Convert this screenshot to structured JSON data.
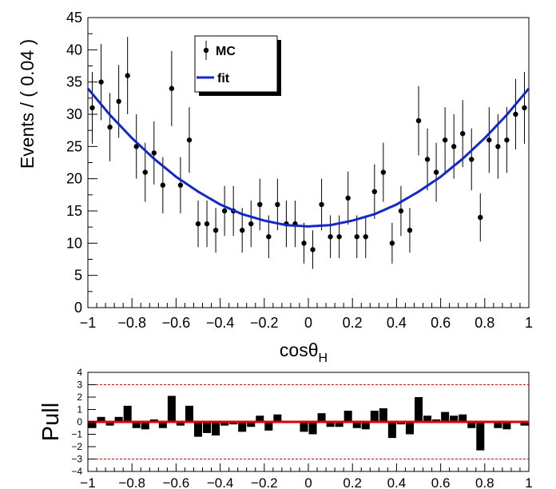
{
  "chart_data": [
    {
      "type": "scatter",
      "xlabel_main": "cosθ",
      "xlabel_sub": "H",
      "ylabel": "Events / ( 0.04 )",
      "xlim": [
        -1,
        1
      ],
      "ylim": [
        0,
        45
      ],
      "x_ticks": [
        "−1",
        "−0.8",
        "−0.6",
        "−0.4",
        "−0.2",
        "0",
        "0.2",
        "0.4",
        "0.6",
        "0.8",
        "1"
      ],
      "y_ticks": [
        "0",
        "5",
        "10",
        "15",
        "20",
        "25",
        "30",
        "35",
        "40",
        "45"
      ],
      "legend": {
        "position": "top-left",
        "entries": [
          "MC",
          "fit"
        ]
      },
      "series": [
        {
          "name": "MC",
          "style": "points-with-errorbars",
          "color": "#000000",
          "x": [
            -0.98,
            -0.94,
            -0.9,
            -0.86,
            -0.82,
            -0.78,
            -0.74,
            -0.7,
            -0.66,
            -0.62,
            -0.58,
            -0.54,
            -0.5,
            -0.46,
            -0.42,
            -0.38,
            -0.34,
            -0.3,
            -0.26,
            -0.22,
            -0.18,
            -0.14,
            -0.1,
            -0.06,
            -0.02,
            0.02,
            0.06,
            0.1,
            0.14,
            0.18,
            0.22,
            0.26,
            0.3,
            0.34,
            0.38,
            0.42,
            0.46,
            0.5,
            0.54,
            0.58,
            0.62,
            0.66,
            0.7,
            0.74,
            0.78,
            0.82,
            0.86,
            0.9,
            0.94,
            0.98
          ],
          "y": [
            31,
            35,
            28,
            32,
            36,
            25,
            21,
            24,
            19,
            34,
            19,
            26,
            13,
            13,
            12,
            15,
            15,
            12,
            13,
            16,
            11,
            16,
            13,
            13,
            10,
            9,
            16,
            11,
            11,
            17,
            11,
            11,
            18,
            21,
            10,
            15,
            12,
            29,
            23,
            21,
            26,
            25,
            27,
            23,
            14,
            26,
            25,
            26,
            30,
            31
          ]
        },
        {
          "name": "fit",
          "style": "line",
          "color": "#1428c8",
          "function": "12.6 + 21.4 * x^2",
          "x": [
            -1,
            -0.9,
            -0.8,
            -0.7,
            -0.6,
            -0.5,
            -0.4,
            -0.3,
            -0.2,
            -0.1,
            0,
            0.1,
            0.2,
            0.3,
            0.4,
            0.5,
            0.6,
            0.7,
            0.8,
            0.9,
            1
          ],
          "y": [
            34.0,
            29.9,
            26.3,
            23.1,
            20.3,
            18.0,
            16.0,
            14.5,
            13.5,
            12.8,
            12.6,
            12.8,
            13.5,
            14.5,
            16.0,
            18.0,
            20.3,
            23.1,
            26.3,
            29.9,
            34.0
          ]
        }
      ]
    },
    {
      "type": "bar",
      "ylabel": "Pull",
      "xlim": [
        -1,
        1
      ],
      "ylim": [
        -4,
        4
      ],
      "x_ticks": [
        "−1",
        "−0.8",
        "−0.6",
        "−0.4",
        "−0.2",
        "0",
        "0.2",
        "0.4",
        "0.6",
        "0.8",
        "1"
      ],
      "y_ticks": [
        "−4",
        "−3",
        "−2",
        "−1",
        "0",
        "1",
        "2",
        "3",
        "4"
      ],
      "reference_lines": [
        {
          "y": 0,
          "color": "#e00000",
          "style": "solid"
        },
        {
          "y": 3,
          "color": "#e00000",
          "style": "dashed"
        },
        {
          "y": -3,
          "color": "#e00000",
          "style": "dashed"
        }
      ],
      "bar_color": "#000000",
      "x": [
        -0.98,
        -0.94,
        -0.9,
        -0.86,
        -0.82,
        -0.78,
        -0.74,
        -0.7,
        -0.66,
        -0.62,
        -0.58,
        -0.54,
        -0.5,
        -0.46,
        -0.42,
        -0.38,
        -0.34,
        -0.3,
        -0.26,
        -0.22,
        -0.18,
        -0.14,
        -0.1,
        -0.06,
        -0.02,
        0.02,
        0.06,
        0.1,
        0.14,
        0.18,
        0.22,
        0.26,
        0.3,
        0.34,
        0.38,
        0.42,
        0.46,
        0.5,
        0.54,
        0.58,
        0.62,
        0.66,
        0.7,
        0.74,
        0.78,
        0.82,
        0.86,
        0.9,
        0.94,
        0.98
      ],
      "values": [
        -0.5,
        0.4,
        -0.3,
        0.4,
        1.3,
        -0.5,
        -0.6,
        0.2,
        -0.5,
        2.1,
        -0.3,
        1.3,
        -1.2,
        -0.9,
        -1.1,
        -0.3,
        -0.2,
        -0.8,
        -0.4,
        0.5,
        -0.7,
        0.6,
        -0.1,
        -0.1,
        -0.8,
        -1.0,
        0.7,
        -0.4,
        -0.4,
        0.9,
        -0.5,
        -0.6,
        0.9,
        1.1,
        -1.3,
        -0.2,
        -1.0,
        2.0,
        0.5,
        0.2,
        0.8,
        0.5,
        0.6,
        -0.5,
        -2.3,
        -0.1,
        -0.5,
        -0.6,
        -0.1,
        -0.3
      ]
    }
  ]
}
